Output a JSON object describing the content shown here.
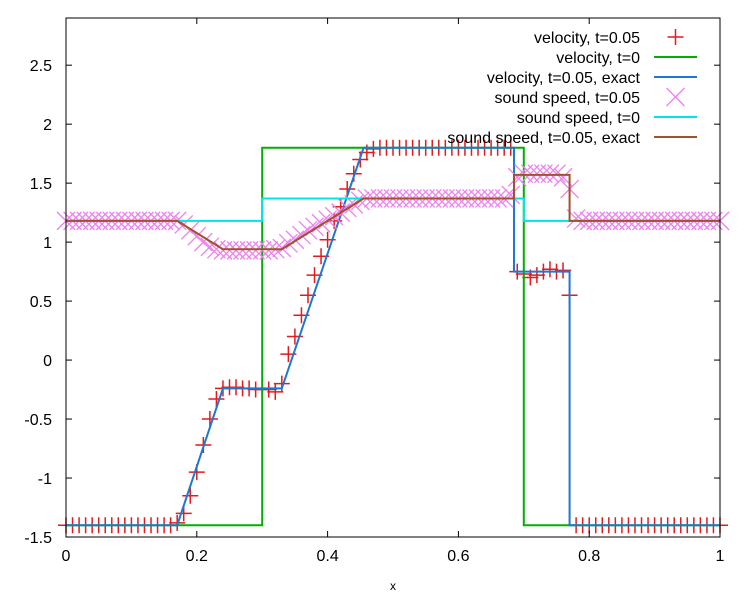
{
  "chart_data": {
    "type": "line",
    "title": "",
    "xlabel": "x",
    "ylabel": "",
    "xlim": [
      0,
      1
    ],
    "ylim": [
      -1.5,
      2.9
    ],
    "grid": false,
    "legend_position": "top-right",
    "x_ticks": [
      0,
      0.2,
      0.4,
      0.6,
      0.8,
      1
    ],
    "x_tick_labels": [
      "0",
      "0.2",
      "0.4",
      "0.6",
      "0.8",
      "1"
    ],
    "y_ticks": [
      -1.5,
      -1,
      -0.5,
      0,
      0.5,
      1,
      1.5,
      2,
      2.5
    ],
    "y_tick_labels": [
      "-1.5",
      "-1",
      "-0.5",
      "0",
      "0.5",
      "1",
      "1.5",
      "2",
      "2.5"
    ],
    "series": [
      {
        "name": "velocity, t=0.05",
        "style": "points",
        "marker": "plus",
        "color": "#e41a1c",
        "points": [
          [
            0.0,
            -1.4
          ],
          [
            0.01,
            -1.4
          ],
          [
            0.02,
            -1.4
          ],
          [
            0.03,
            -1.4
          ],
          [
            0.04,
            -1.4
          ],
          [
            0.05,
            -1.4
          ],
          [
            0.06,
            -1.4
          ],
          [
            0.07,
            -1.4
          ],
          [
            0.08,
            -1.4
          ],
          [
            0.09,
            -1.4
          ],
          [
            0.1,
            -1.4
          ],
          [
            0.11,
            -1.4
          ],
          [
            0.12,
            -1.4
          ],
          [
            0.13,
            -1.4
          ],
          [
            0.14,
            -1.4
          ],
          [
            0.15,
            -1.4
          ],
          [
            0.16,
            -1.4
          ],
          [
            0.17,
            -1.38
          ],
          [
            0.18,
            -1.3
          ],
          [
            0.19,
            -1.15
          ],
          [
            0.2,
            -0.95
          ],
          [
            0.21,
            -0.72
          ],
          [
            0.22,
            -0.5
          ],
          [
            0.23,
            -0.33
          ],
          [
            0.24,
            -0.24
          ],
          [
            0.25,
            -0.23
          ],
          [
            0.26,
            -0.23
          ],
          [
            0.27,
            -0.24
          ],
          [
            0.28,
            -0.24
          ],
          [
            0.29,
            -0.25
          ],
          [
            0.3,
            -0.25
          ],
          [
            0.31,
            -0.25
          ],
          [
            0.32,
            -0.27
          ],
          [
            0.33,
            -0.2
          ],
          [
            0.34,
            0.05
          ],
          [
            0.35,
            0.2
          ],
          [
            0.36,
            0.38
          ],
          [
            0.37,
            0.55
          ],
          [
            0.38,
            0.72
          ],
          [
            0.39,
            0.88
          ],
          [
            0.4,
            1.02
          ],
          [
            0.41,
            1.18
          ],
          [
            0.42,
            1.3
          ],
          [
            0.43,
            1.45
          ],
          [
            0.44,
            1.58
          ],
          [
            0.45,
            1.7
          ],
          [
            0.46,
            1.76
          ],
          [
            0.47,
            1.79
          ],
          [
            0.48,
            1.8
          ],
          [
            0.49,
            1.8
          ],
          [
            0.5,
            1.8
          ],
          [
            0.51,
            1.8
          ],
          [
            0.52,
            1.8
          ],
          [
            0.53,
            1.8
          ],
          [
            0.54,
            1.8
          ],
          [
            0.55,
            1.8
          ],
          [
            0.56,
            1.8
          ],
          [
            0.57,
            1.8
          ],
          [
            0.58,
            1.8
          ],
          [
            0.59,
            1.8
          ],
          [
            0.6,
            1.8
          ],
          [
            0.61,
            1.8
          ],
          [
            0.62,
            1.8
          ],
          [
            0.63,
            1.8
          ],
          [
            0.64,
            1.8
          ],
          [
            0.65,
            1.8
          ],
          [
            0.66,
            1.8
          ],
          [
            0.67,
            1.8
          ],
          [
            0.68,
            1.8
          ],
          [
            0.69,
            0.75
          ],
          [
            0.7,
            0.73
          ],
          [
            0.71,
            0.7
          ],
          [
            0.72,
            0.72
          ],
          [
            0.73,
            0.75
          ],
          [
            0.74,
            0.77
          ],
          [
            0.75,
            0.75
          ],
          [
            0.76,
            0.76
          ],
          [
            0.77,
            0.55
          ],
          [
            0.78,
            -1.4
          ],
          [
            0.79,
            -1.4
          ],
          [
            0.8,
            -1.4
          ],
          [
            0.81,
            -1.4
          ],
          [
            0.82,
            -1.4
          ],
          [
            0.83,
            -1.4
          ],
          [
            0.84,
            -1.4
          ],
          [
            0.85,
            -1.4
          ],
          [
            0.86,
            -1.4
          ],
          [
            0.87,
            -1.4
          ],
          [
            0.88,
            -1.4
          ],
          [
            0.89,
            -1.4
          ],
          [
            0.9,
            -1.4
          ],
          [
            0.91,
            -1.4
          ],
          [
            0.92,
            -1.4
          ],
          [
            0.93,
            -1.4
          ],
          [
            0.94,
            -1.4
          ],
          [
            0.95,
            -1.4
          ],
          [
            0.96,
            -1.4
          ],
          [
            0.97,
            -1.4
          ],
          [
            0.98,
            -1.4
          ],
          [
            0.99,
            -1.4
          ],
          [
            1.0,
            -1.4
          ]
        ]
      },
      {
        "name": "velocity, t=0",
        "style": "line",
        "color": "#00b000",
        "points": [
          [
            0.0,
            -1.4
          ],
          [
            0.3,
            -1.4
          ],
          [
            0.3,
            1.8
          ],
          [
            0.7,
            1.8
          ],
          [
            0.7,
            -1.4
          ],
          [
            1.0,
            -1.4
          ]
        ]
      },
      {
        "name": "velocity, t=0.05, exact",
        "style": "line",
        "color": "#1f77d4",
        "points": [
          [
            0.0,
            -1.4
          ],
          [
            0.17,
            -1.4
          ],
          [
            0.24,
            -0.24
          ],
          [
            0.33,
            -0.24
          ],
          [
            0.455,
            1.8
          ],
          [
            0.685,
            1.8
          ],
          [
            0.685,
            0.75
          ],
          [
            0.77,
            0.75
          ],
          [
            0.77,
            -1.4
          ],
          [
            1.0,
            -1.4
          ]
        ]
      },
      {
        "name": "sound speed, t=0.05",
        "style": "points",
        "marker": "cross",
        "color": "#ee82ee",
        "points": [
          [
            0.0,
            1.18
          ],
          [
            0.01,
            1.18
          ],
          [
            0.02,
            1.18
          ],
          [
            0.03,
            1.18
          ],
          [
            0.04,
            1.18
          ],
          [
            0.05,
            1.18
          ],
          [
            0.06,
            1.18
          ],
          [
            0.07,
            1.18
          ],
          [
            0.08,
            1.18
          ],
          [
            0.09,
            1.18
          ],
          [
            0.1,
            1.18
          ],
          [
            0.11,
            1.18
          ],
          [
            0.12,
            1.18
          ],
          [
            0.13,
            1.18
          ],
          [
            0.14,
            1.18
          ],
          [
            0.15,
            1.18
          ],
          [
            0.16,
            1.18
          ],
          [
            0.17,
            1.18
          ],
          [
            0.18,
            1.15
          ],
          [
            0.19,
            1.1
          ],
          [
            0.2,
            1.05
          ],
          [
            0.21,
            1.0
          ],
          [
            0.22,
            0.96
          ],
          [
            0.23,
            0.94
          ],
          [
            0.24,
            0.93
          ],
          [
            0.25,
            0.93
          ],
          [
            0.26,
            0.93
          ],
          [
            0.27,
            0.93
          ],
          [
            0.28,
            0.93
          ],
          [
            0.29,
            0.93
          ],
          [
            0.3,
            0.93
          ],
          [
            0.31,
            0.93
          ],
          [
            0.32,
            0.94
          ],
          [
            0.33,
            0.95
          ],
          [
            0.34,
            0.99
          ],
          [
            0.35,
            1.02
          ],
          [
            0.36,
            1.06
          ],
          [
            0.37,
            1.1
          ],
          [
            0.38,
            1.13
          ],
          [
            0.39,
            1.16
          ],
          [
            0.4,
            1.19
          ],
          [
            0.41,
            1.22
          ],
          [
            0.42,
            1.25
          ],
          [
            0.43,
            1.29
          ],
          [
            0.44,
            1.32
          ],
          [
            0.45,
            1.35
          ],
          [
            0.46,
            1.37
          ],
          [
            0.47,
            1.37
          ],
          [
            0.48,
            1.37
          ],
          [
            0.49,
            1.37
          ],
          [
            0.5,
            1.37
          ],
          [
            0.51,
            1.37
          ],
          [
            0.52,
            1.37
          ],
          [
            0.53,
            1.37
          ],
          [
            0.54,
            1.37
          ],
          [
            0.55,
            1.37
          ],
          [
            0.56,
            1.37
          ],
          [
            0.57,
            1.37
          ],
          [
            0.58,
            1.37
          ],
          [
            0.59,
            1.37
          ],
          [
            0.6,
            1.37
          ],
          [
            0.61,
            1.37
          ],
          [
            0.62,
            1.37
          ],
          [
            0.63,
            1.37
          ],
          [
            0.64,
            1.37
          ],
          [
            0.65,
            1.37
          ],
          [
            0.66,
            1.37
          ],
          [
            0.67,
            1.37
          ],
          [
            0.68,
            1.4
          ],
          [
            0.69,
            1.55
          ],
          [
            0.7,
            1.58
          ],
          [
            0.71,
            1.58
          ],
          [
            0.72,
            1.58
          ],
          [
            0.73,
            1.58
          ],
          [
            0.74,
            1.58
          ],
          [
            0.75,
            1.58
          ],
          [
            0.76,
            1.55
          ],
          [
            0.77,
            1.45
          ],
          [
            0.78,
            1.2
          ],
          [
            0.79,
            1.18
          ],
          [
            0.8,
            1.18
          ],
          [
            0.81,
            1.18
          ],
          [
            0.82,
            1.18
          ],
          [
            0.83,
            1.18
          ],
          [
            0.84,
            1.18
          ],
          [
            0.85,
            1.18
          ],
          [
            0.86,
            1.18
          ],
          [
            0.87,
            1.18
          ],
          [
            0.88,
            1.18
          ],
          [
            0.89,
            1.18
          ],
          [
            0.9,
            1.18
          ],
          [
            0.91,
            1.18
          ],
          [
            0.92,
            1.18
          ],
          [
            0.93,
            1.18
          ],
          [
            0.94,
            1.18
          ],
          [
            0.95,
            1.18
          ],
          [
            0.96,
            1.18
          ],
          [
            0.97,
            1.18
          ],
          [
            0.98,
            1.18
          ],
          [
            0.99,
            1.18
          ],
          [
            1.0,
            1.18
          ]
        ]
      },
      {
        "name": "sound speed, t=0",
        "style": "line",
        "color": "#00e5e5",
        "points": [
          [
            0.0,
            1.18
          ],
          [
            0.3,
            1.18
          ],
          [
            0.3,
            1.37
          ],
          [
            0.7,
            1.37
          ],
          [
            0.7,
            1.18
          ],
          [
            1.0,
            1.18
          ]
        ]
      },
      {
        "name": "sound speed, t=0.05, exact",
        "style": "line",
        "color": "#a0522d",
        "points": [
          [
            0.0,
            1.18
          ],
          [
            0.17,
            1.18
          ],
          [
            0.24,
            0.94
          ],
          [
            0.33,
            0.94
          ],
          [
            0.455,
            1.37
          ],
          [
            0.685,
            1.37
          ],
          [
            0.685,
            1.57
          ],
          [
            0.77,
            1.57
          ],
          [
            0.77,
            1.18
          ],
          [
            1.0,
            1.18
          ]
        ]
      }
    ]
  }
}
